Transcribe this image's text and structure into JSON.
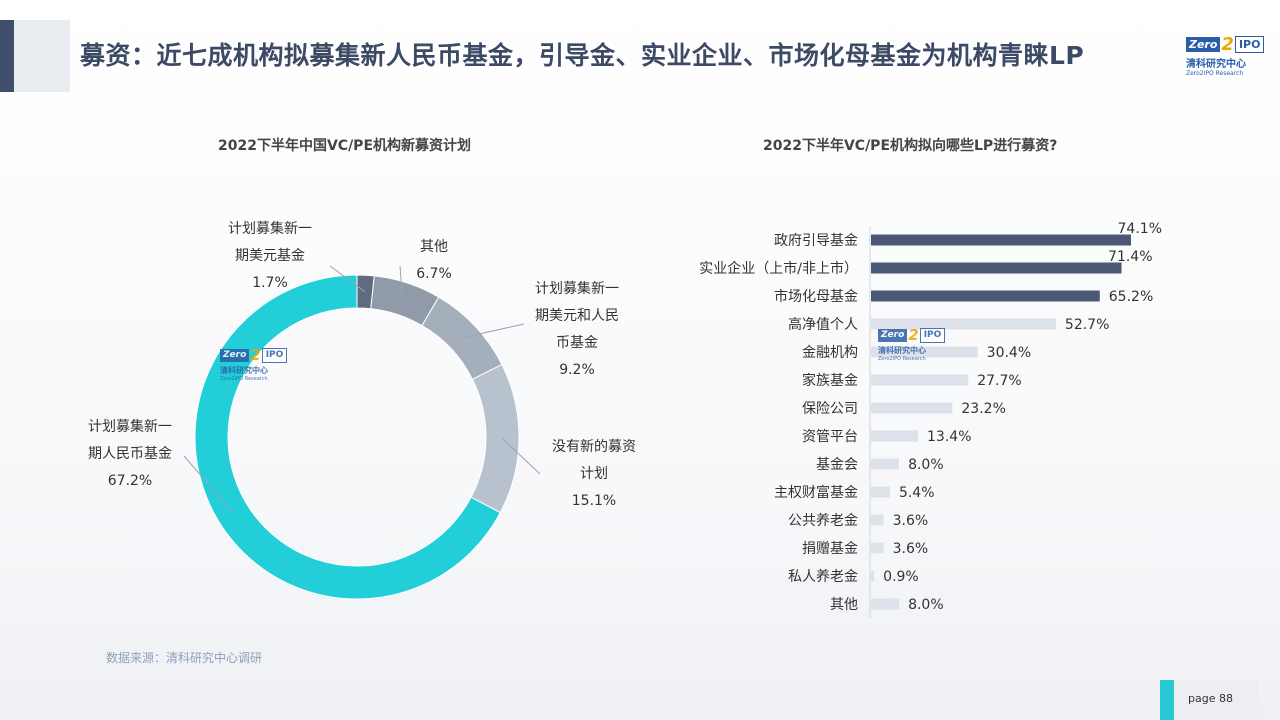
{
  "header": {
    "title": "募资：近七成机构拟募集新人民币基金，引导金、实业企业、市场化母基金为机构青睐LP"
  },
  "logo": {
    "zero": "Zero",
    "two": "2",
    "ipo": "IPO",
    "cn": "清科研究中心",
    "en": "Zero2IPO Research"
  },
  "colors": {
    "title": "#3c4a66",
    "accent": "#3f4e6c",
    "cyan": "#22cfd9",
    "bar_dark": "#4a5874",
    "bar_light": "#dde1e9"
  },
  "chart_data": [
    {
      "type": "pie",
      "title": "2022下半年中国VC/PE机构新募资计划",
      "slices": [
        {
          "label_lines": [
            "计划募集新一",
            "期美元基金"
          ],
          "value": 1.7,
          "pct": "1.7%",
          "color": "#5f6b80"
        },
        {
          "label_lines": [
            "其他"
          ],
          "value": 6.7,
          "pct": "6.7%",
          "color": "#909aa8"
        },
        {
          "label_lines": [
            "计划募集新一",
            "期美元和人民",
            "币基金"
          ],
          "value": 9.2,
          "pct": "9.2%",
          "color": "#a5afbc"
        },
        {
          "label_lines": [
            "没有新的募资",
            "计划"
          ],
          "value": 15.1,
          "pct": "15.1%",
          "color": "#b8c2cf"
        },
        {
          "label_lines": [
            "计划募集新一",
            "期人民币基金"
          ],
          "value": 67.2,
          "pct": "67.2%",
          "color": "#22cfd9"
        }
      ]
    },
    {
      "type": "bar",
      "orientation": "horizontal",
      "title": "2022下半年VC/PE机构拟向哪些LP进行募资?",
      "categories": [
        "政府引导基金",
        "实业企业（上市/非上市）",
        "市场化母基金",
        "高净值个人",
        "金融机构",
        "家族基金",
        "保险公司",
        "资管平台",
        "基金会",
        "主权财富基金",
        "公共养老金",
        "捐赠基金",
        "私人养老金",
        "其他"
      ],
      "values": [
        74.1,
        71.4,
        65.2,
        52.7,
        30.4,
        27.7,
        23.2,
        13.4,
        8.0,
        5.4,
        3.6,
        3.6,
        0.9,
        8.0
      ],
      "value_labels": [
        "74.1%",
        "71.4%",
        "65.2%",
        "52.7%",
        "30.4%",
        "27.7%",
        "23.2%",
        "13.4%",
        "8.0%",
        "5.4%",
        "3.6%",
        "3.6%",
        "0.9%",
        "8.0%"
      ],
      "highlighted_count": 3
    }
  ],
  "source": "数据来源：清科研究中心调研",
  "footer": {
    "page": "page  88"
  }
}
